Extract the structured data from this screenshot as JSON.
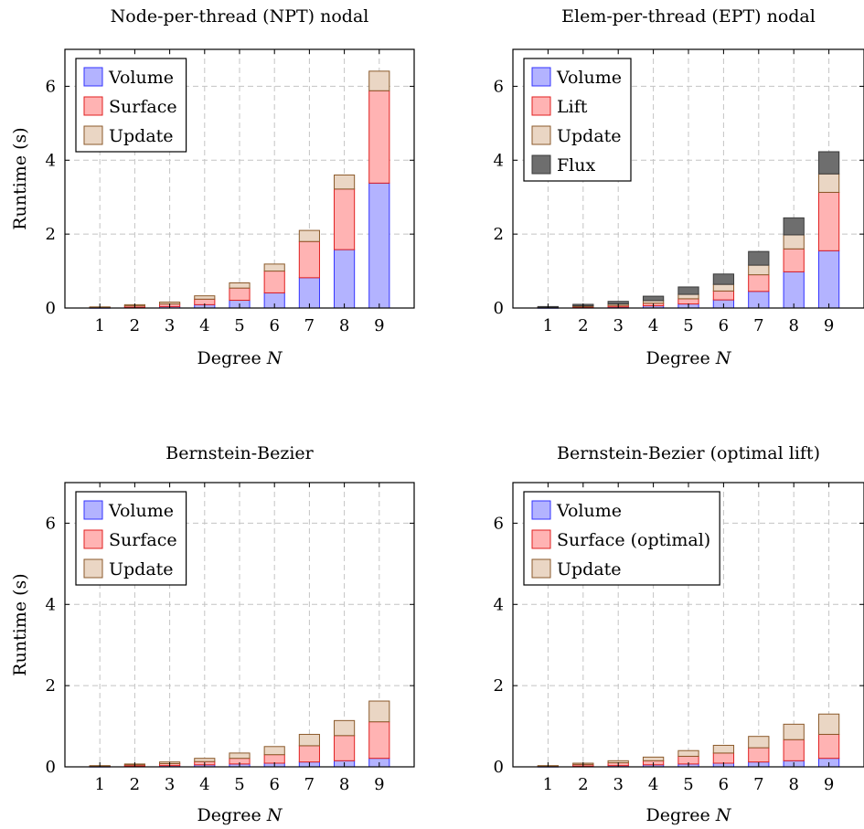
{
  "chart_data": [
    {
      "type": "bar",
      "stacked": true,
      "title": "Node-per-thread (NPT) nodal",
      "xlabel": "Degree N",
      "ylabel": "Runtime (s)",
      "categories": [
        "1",
        "2",
        "3",
        "4",
        "5",
        "6",
        "7",
        "8",
        "9"
      ],
      "ylim": [
        0,
        7
      ],
      "yticks": [
        0,
        2,
        4,
        6
      ],
      "grid": true,
      "legend_position": "top-left",
      "series": [
        {
          "name": "Volume",
          "color_fill": "#b3b3ff",
          "color_edge": "#3333ff",
          "values": [
            0.01,
            0.02,
            0.04,
            0.09,
            0.21,
            0.41,
            0.82,
            1.58,
            3.38
          ]
        },
        {
          "name": "Surface",
          "color_fill": "#ffb3b3",
          "color_edge": "#e02020",
          "values": [
            0.01,
            0.04,
            0.07,
            0.15,
            0.33,
            0.59,
            0.98,
            1.64,
            2.5
          ]
        },
        {
          "name": "Update",
          "color_fill": "#ead6c4",
          "color_edge": "#8b5a2b",
          "values": [
            0.01,
            0.03,
            0.05,
            0.09,
            0.14,
            0.19,
            0.3,
            0.38,
            0.53
          ]
        }
      ]
    },
    {
      "type": "bar",
      "stacked": true,
      "title": "Elem-per-thread (EPT) nodal",
      "xlabel": "Degree N",
      "ylabel": "",
      "categories": [
        "1",
        "2",
        "3",
        "4",
        "5",
        "6",
        "7",
        "8",
        "9"
      ],
      "ylim": [
        0,
        7
      ],
      "yticks": [
        0,
        2,
        4,
        6
      ],
      "grid": true,
      "legend_position": "top-left",
      "series": [
        {
          "name": "Volume",
          "color_fill": "#b3b3ff",
          "color_edge": "#3333ff",
          "values": [
            0.01,
            0.02,
            0.03,
            0.06,
            0.11,
            0.22,
            0.45,
            0.98,
            1.55
          ]
        },
        {
          "name": "Lift",
          "color_fill": "#ffb3b3",
          "color_edge": "#e02020",
          "values": [
            0.01,
            0.02,
            0.04,
            0.07,
            0.14,
            0.24,
            0.45,
            0.62,
            1.58
          ]
        },
        {
          "name": "Update",
          "color_fill": "#ead6c4",
          "color_edge": "#8b5a2b",
          "values": [
            0.01,
            0.02,
            0.04,
            0.07,
            0.12,
            0.18,
            0.26,
            0.38,
            0.5
          ]
        },
        {
          "name": "Flux",
          "color_fill": "#6e6e6e",
          "color_edge": "#3a3a3a",
          "values": [
            0.01,
            0.04,
            0.07,
            0.12,
            0.2,
            0.28,
            0.37,
            0.46,
            0.6
          ]
        }
      ]
    },
    {
      "type": "bar",
      "stacked": true,
      "title": "Bernstein-Bezier",
      "xlabel": "Degree N",
      "ylabel": "Runtime (s)",
      "categories": [
        "1",
        "2",
        "3",
        "4",
        "5",
        "6",
        "7",
        "8",
        "9"
      ],
      "ylim": [
        0,
        7
      ],
      "yticks": [
        0,
        2,
        4,
        6
      ],
      "grid": true,
      "legend_position": "top-left",
      "series": [
        {
          "name": "Volume",
          "color_fill": "#b3b3ff",
          "color_edge": "#3333ff",
          "values": [
            0.01,
            0.02,
            0.03,
            0.05,
            0.07,
            0.09,
            0.12,
            0.15,
            0.21
          ]
        },
        {
          "name": "Surface",
          "color_fill": "#ffb3b3",
          "color_edge": "#e02020",
          "values": [
            0.01,
            0.03,
            0.05,
            0.08,
            0.14,
            0.21,
            0.4,
            0.62,
            0.9
          ]
        },
        {
          "name": "Update",
          "color_fill": "#ead6c4",
          "color_edge": "#8b5a2b",
          "values": [
            0.01,
            0.02,
            0.04,
            0.08,
            0.13,
            0.2,
            0.28,
            0.37,
            0.51
          ]
        }
      ]
    },
    {
      "type": "bar",
      "stacked": true,
      "title": "Bernstein-Bezier (optimal lift)",
      "xlabel": "Degree N",
      "ylabel": "",
      "categories": [
        "1",
        "2",
        "3",
        "4",
        "5",
        "6",
        "7",
        "8",
        "9"
      ],
      "ylim": [
        0,
        7
      ],
      "yticks": [
        0,
        2,
        4,
        6
      ],
      "grid": true,
      "legend_position": "top-left",
      "series": [
        {
          "name": "Volume",
          "color_fill": "#b3b3ff",
          "color_edge": "#3333ff",
          "values": [
            0.01,
            0.02,
            0.03,
            0.05,
            0.07,
            0.09,
            0.12,
            0.15,
            0.21
          ]
        },
        {
          "name": "Surface (optimal)",
          "color_fill": "#ffb3b3",
          "color_edge": "#e02020",
          "values": [
            0.01,
            0.04,
            0.07,
            0.1,
            0.19,
            0.25,
            0.35,
            0.52,
            0.59
          ]
        },
        {
          "name": "Update",
          "color_fill": "#ead6c4",
          "color_edge": "#8b5a2b",
          "values": [
            0.01,
            0.03,
            0.05,
            0.09,
            0.14,
            0.19,
            0.28,
            0.38,
            0.5
          ]
        }
      ]
    }
  ]
}
